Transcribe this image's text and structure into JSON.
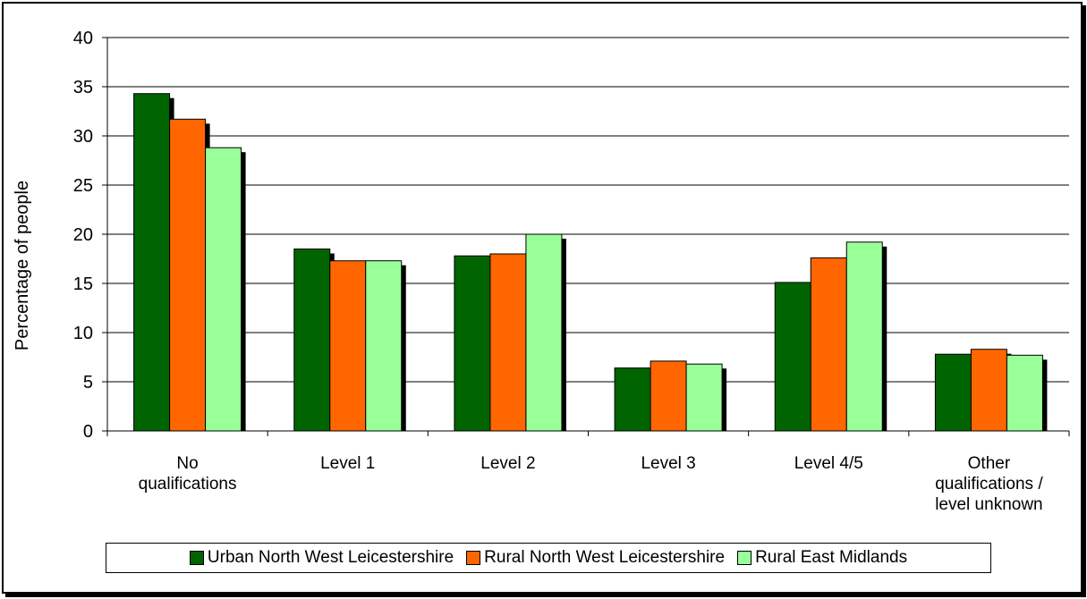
{
  "chart_data": {
    "type": "bar",
    "title": "",
    "xlabel": "",
    "ylabel": "Percentage of people",
    "ylim": [
      0,
      40
    ],
    "yticks": [
      0,
      5,
      10,
      15,
      20,
      25,
      30,
      35,
      40
    ],
    "grid": true,
    "legend_position": "bottom",
    "categories": [
      [
        "No",
        "qualifications"
      ],
      [
        "Level 1"
      ],
      [
        "Level 2"
      ],
      [
        "Level 3"
      ],
      [
        "Level 4/5"
      ],
      [
        "Other",
        "qualifications /",
        "level unknown"
      ]
    ],
    "series": [
      {
        "name": "Urban North West Leicestershire",
        "color": "#006400",
        "values": [
          34.3,
          18.5,
          17.8,
          6.4,
          15.1,
          7.8
        ]
      },
      {
        "name": "Rural North West Leicestershire",
        "color": "#FF6600",
        "values": [
          31.7,
          17.3,
          18.0,
          7.1,
          17.6,
          8.3
        ]
      },
      {
        "name": "Rural East Midlands",
        "color": "#99FF99",
        "values": [
          28.8,
          17.3,
          20.0,
          6.8,
          19.2,
          7.7
        ]
      }
    ]
  }
}
